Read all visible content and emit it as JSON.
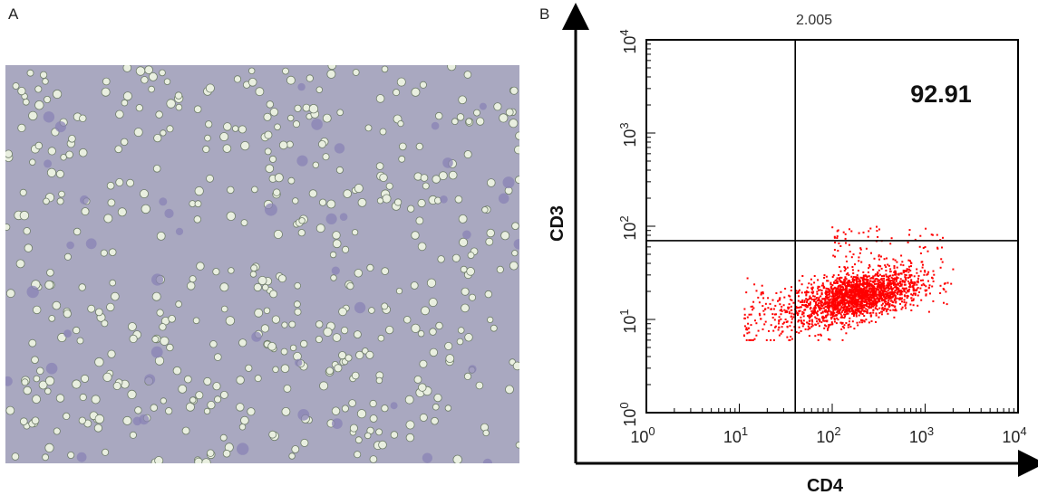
{
  "panels": {
    "a_label": "A",
    "b_label": "B"
  },
  "micrograph": {
    "background_color": "#a9a8c0",
    "cell_color": "#e9efe0",
    "stained_cell_color": "#8a83b6"
  },
  "chart_data": {
    "type": "scatter",
    "xlabel": "CD4",
    "ylabel": "CD3",
    "xscale": "log",
    "yscale": "log",
    "xlim": [
      1,
      10000
    ],
    "ylim": [
      1,
      10000
    ],
    "x_ticks": [
      1,
      10,
      100,
      1000,
      10000
    ],
    "y_ticks": [
      1,
      10,
      100,
      1000,
      10000
    ],
    "quadrant_gate": {
      "x": 40,
      "y": 70
    },
    "annotations": [
      {
        "text": "2.005",
        "location": "top",
        "role": "upper-left quadrant percentage"
      },
      {
        "text": "92.91",
        "location": "upper-right",
        "role": "upper-right quadrant percentage"
      }
    ],
    "point_color": "#ff0000",
    "population": {
      "description": "dense cluster of events below the horizontal gate",
      "x_range": [
        10,
        2000
      ],
      "y_range": [
        6,
        100
      ],
      "center_x": 200,
      "center_y": 18
    },
    "grid": false,
    "legend": "none"
  }
}
